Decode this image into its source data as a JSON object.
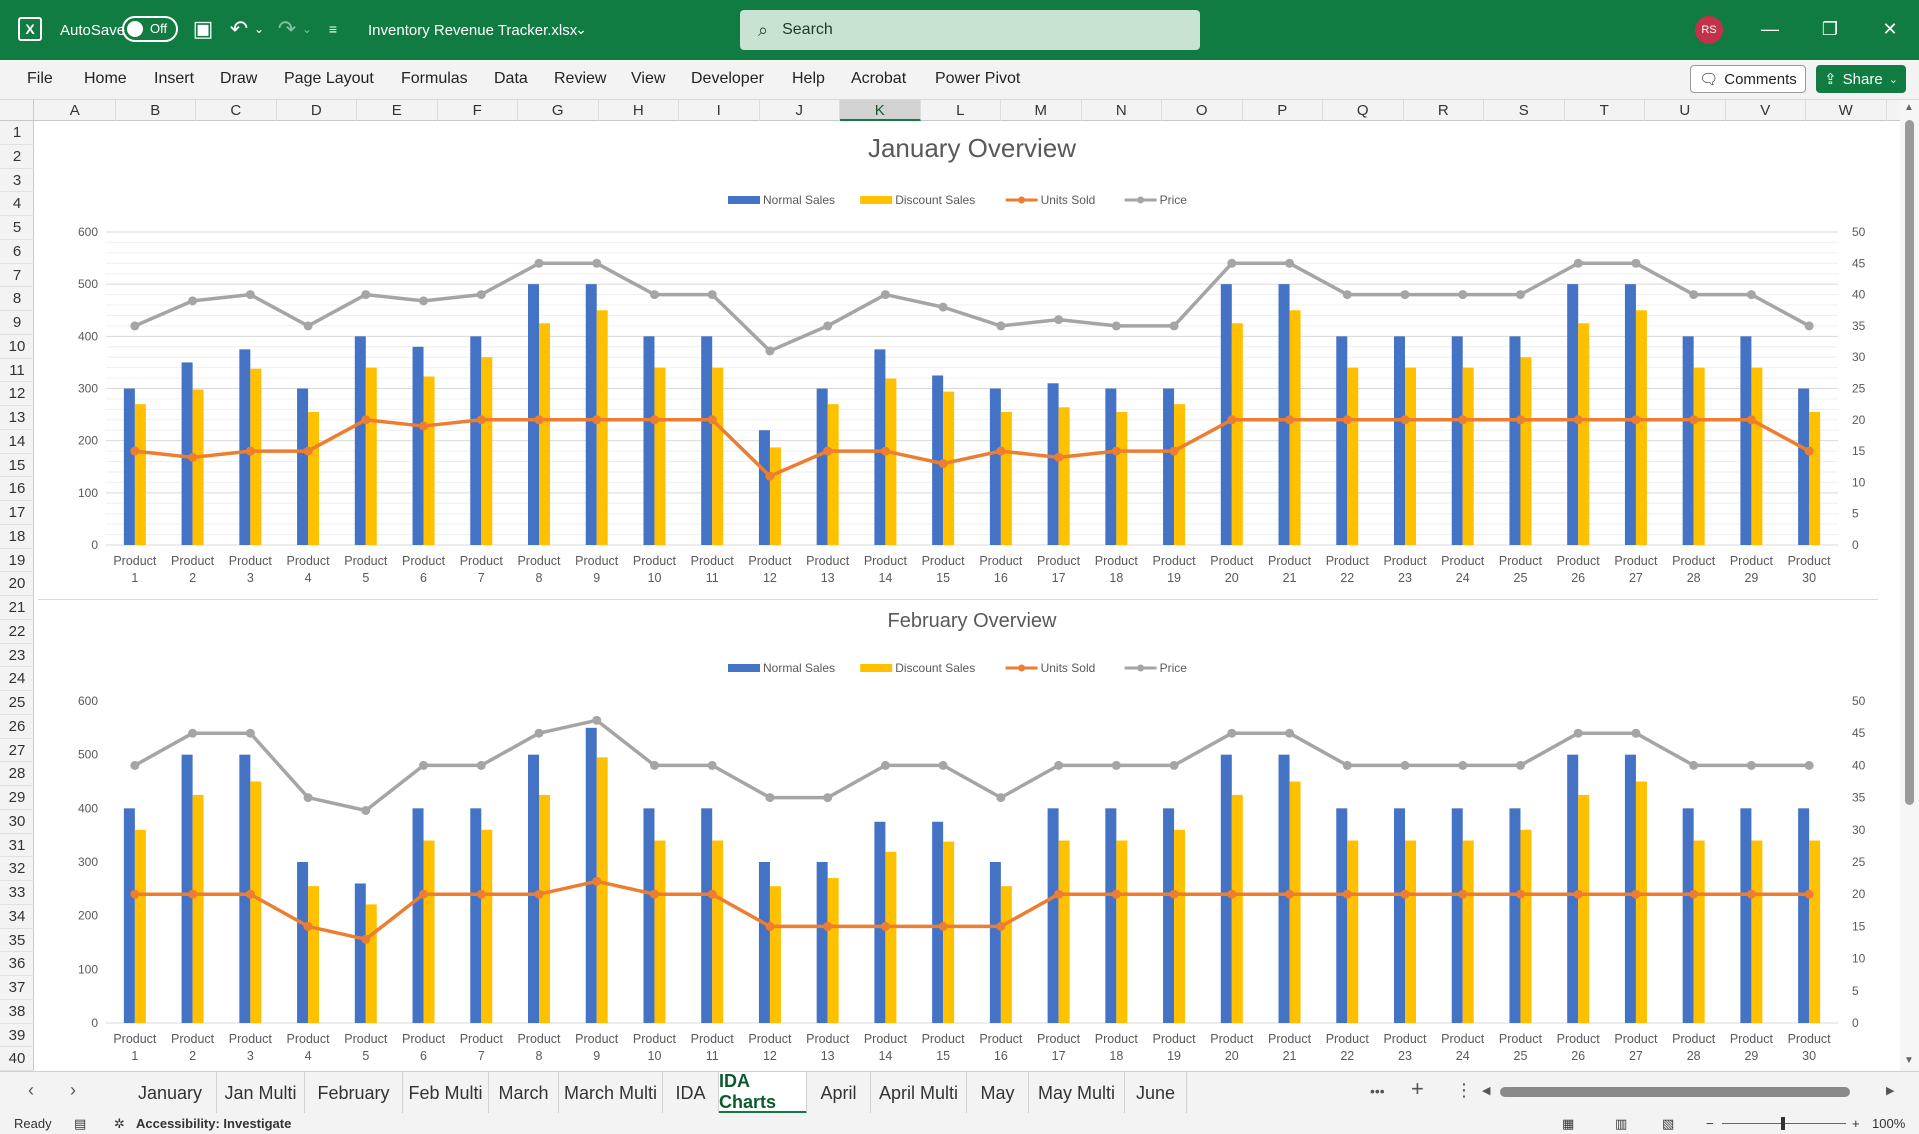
{
  "titlebar": {
    "autosave_label": "AutoSave",
    "autosave_state": "Off",
    "filename": "Inventory Revenue Tracker.xlsx",
    "search_placeholder": "Search",
    "user_initials": "RS"
  },
  "ribbon": {
    "tabs": [
      "File",
      "Home",
      "Insert",
      "Draw",
      "Page Layout",
      "Formulas",
      "Data",
      "Review",
      "View",
      "Developer",
      "Help",
      "Acrobat",
      "Power Pivot"
    ],
    "comments_label": "Comments",
    "share_label": "Share"
  },
  "grid": {
    "columns": [
      "A",
      "B",
      "C",
      "D",
      "E",
      "F",
      "G",
      "H",
      "I",
      "J",
      "K",
      "L",
      "M",
      "N",
      "O",
      "P",
      "Q",
      "R",
      "S",
      "T",
      "U",
      "V",
      "W"
    ],
    "selected_column": "K",
    "rows": [
      "1",
      "2",
      "3",
      "4",
      "5",
      "6",
      "7",
      "8",
      "9",
      "10",
      "11",
      "12",
      "13",
      "14",
      "15",
      "16",
      "17",
      "18",
      "19",
      "20",
      "21",
      "22",
      "23",
      "24",
      "25",
      "26",
      "27",
      "28",
      "29",
      "30",
      "31",
      "32",
      "33",
      "34",
      "35",
      "36",
      "37",
      "38",
      "39",
      "40"
    ]
  },
  "sheet_tabs": [
    "January",
    "Jan Multi",
    "February",
    "Feb Multi",
    "March",
    "March Multi",
    "IDA",
    "IDA Charts",
    "April",
    "April Multi",
    "May",
    "May Multi",
    "June"
  ],
  "active_sheet": "IDA Charts",
  "sheet_tabs_more": "•••",
  "statusbar": {
    "ready": "Ready",
    "accessibility": "Accessibility: Investigate",
    "zoom": "100%"
  },
  "colors": {
    "excel_green": "#107c41",
    "normal_sales": "#4472c4",
    "discount_sales": "#ffc000",
    "units_sold": "#ed7d31",
    "price": "#a5a5a5"
  },
  "chart_data": [
    {
      "type": "bar",
      "title": "January Overview",
      "categories": [
        "Product 1",
        "Product 2",
        "Product 3",
        "Product 4",
        "Product 5",
        "Product 6",
        "Product 7",
        "Product 8",
        "Product 9",
        "Product 10",
        "Product 11",
        "Product 12",
        "Product 13",
        "Product 14",
        "Product 15",
        "Product 16",
        "Product 17",
        "Product 18",
        "Product 19",
        "Product 20",
        "Product 21",
        "Product 22",
        "Product 23",
        "Product 24",
        "Product 25",
        "Product 26",
        "Product 27",
        "Product 28",
        "Product 29",
        "Product 30"
      ],
      "ylim": [
        0,
        600
      ],
      "y_ticks": [
        "0",
        "100",
        "200",
        "300",
        "400",
        "500",
        "600"
      ],
      "y2lim": [
        0,
        50
      ],
      "y2_ticks": [
        "0",
        "5",
        "10",
        "15",
        "20",
        "25",
        "30",
        "35",
        "40",
        "45",
        "50"
      ],
      "legend_position": "top",
      "grid": true,
      "series": [
        {
          "name": "Normal Sales",
          "type": "bar",
          "axis": "left",
          "values": [
            300,
            350,
            375,
            300,
            400,
            380,
            400,
            500,
            500,
            400,
            400,
            220,
            300,
            375,
            325,
            300,
            310,
            300,
            300,
            500,
            500,
            400,
            400,
            400,
            400,
            500,
            500,
            400,
            400,
            300
          ]
        },
        {
          "name": "Discount Sales",
          "type": "bar",
          "axis": "left",
          "values": [
            270,
            298,
            338,
            255,
            340,
            323,
            360,
            425,
            450,
            340,
            340,
            187,
            270,
            319,
            294,
            255,
            264,
            255,
            270,
            425,
            450,
            340,
            340,
            340,
            360,
            425,
            450,
            340,
            340,
            255
          ]
        },
        {
          "name": "Units Sold",
          "type": "line",
          "axis": "right",
          "values": [
            15,
            14,
            15,
            15,
            20,
            19,
            20,
            20,
            20,
            20,
            20,
            11,
            15,
            15,
            13,
            15,
            14,
            15,
            15,
            20,
            20,
            20,
            20,
            20,
            20,
            20,
            20,
            20,
            20,
            15
          ]
        },
        {
          "name": "Price",
          "type": "line",
          "axis": "right",
          "values": [
            35,
            39,
            40,
            35,
            40,
            39,
            40,
            45,
            45,
            40,
            40,
            31,
            35,
            40,
            38,
            35,
            36,
            35,
            35,
            45,
            45,
            40,
            40,
            40,
            40,
            45,
            45,
            40,
            40,
            35
          ]
        }
      ]
    },
    {
      "type": "bar",
      "title": "February Overview",
      "categories": [
        "Product 1",
        "Product 2",
        "Product 3",
        "Product 4",
        "Product 5",
        "Product 6",
        "Product 7",
        "Product 8",
        "Product 9",
        "Product 10",
        "Product 11",
        "Product 12",
        "Product 13",
        "Product 14",
        "Product 15",
        "Product 16",
        "Product 17",
        "Product 18",
        "Product 19",
        "Product 20",
        "Product 21",
        "Product 22",
        "Product 23",
        "Product 24",
        "Product 25",
        "Product 26",
        "Product 27",
        "Product 28",
        "Product 29",
        "Product 30"
      ],
      "ylim": [
        0,
        600
      ],
      "y_ticks": [
        "0",
        "100",
        "200",
        "300",
        "400",
        "500",
        "600"
      ],
      "y2lim": [
        0,
        50
      ],
      "y2_ticks": [
        "0",
        "5",
        "10",
        "15",
        "20",
        "25",
        "30",
        "35",
        "40",
        "45",
        "50"
      ],
      "legend_position": "top",
      "grid": false,
      "series": [
        {
          "name": "Normal Sales",
          "type": "bar",
          "axis": "left",
          "values": [
            400,
            500,
            500,
            300,
            260,
            400,
            400,
            500,
            550,
            400,
            400,
            300,
            300,
            375,
            375,
            300,
            400,
            400,
            400,
            500,
            500,
            400,
            400,
            400,
            400,
            500,
            500,
            400,
            400,
            400
          ]
        },
        {
          "name": "Discount Sales",
          "type": "bar",
          "axis": "left",
          "values": [
            360,
            425,
            450,
            255,
            221,
            340,
            360,
            425,
            495,
            340,
            340,
            255,
            270,
            319,
            338,
            255,
            340,
            340,
            360,
            425,
            450,
            340,
            340,
            340,
            360,
            425,
            450,
            340,
            340,
            340
          ]
        },
        {
          "name": "Units Sold",
          "type": "line",
          "axis": "right",
          "values": [
            20,
            20,
            20,
            15,
            13,
            20,
            20,
            20,
            22,
            20,
            20,
            15,
            15,
            15,
            15,
            15,
            20,
            20,
            20,
            20,
            20,
            20,
            20,
            20,
            20,
            20,
            20,
            20,
            20,
            20
          ]
        },
        {
          "name": "Price",
          "type": "line",
          "axis": "right",
          "values": [
            40,
            45,
            45,
            35,
            33,
            40,
            40,
            45,
            47,
            40,
            40,
            35,
            35,
            40,
            40,
            35,
            40,
            40,
            40,
            45,
            45,
            40,
            40,
            40,
            40,
            45,
            45,
            40,
            40,
            40
          ]
        }
      ]
    }
  ]
}
